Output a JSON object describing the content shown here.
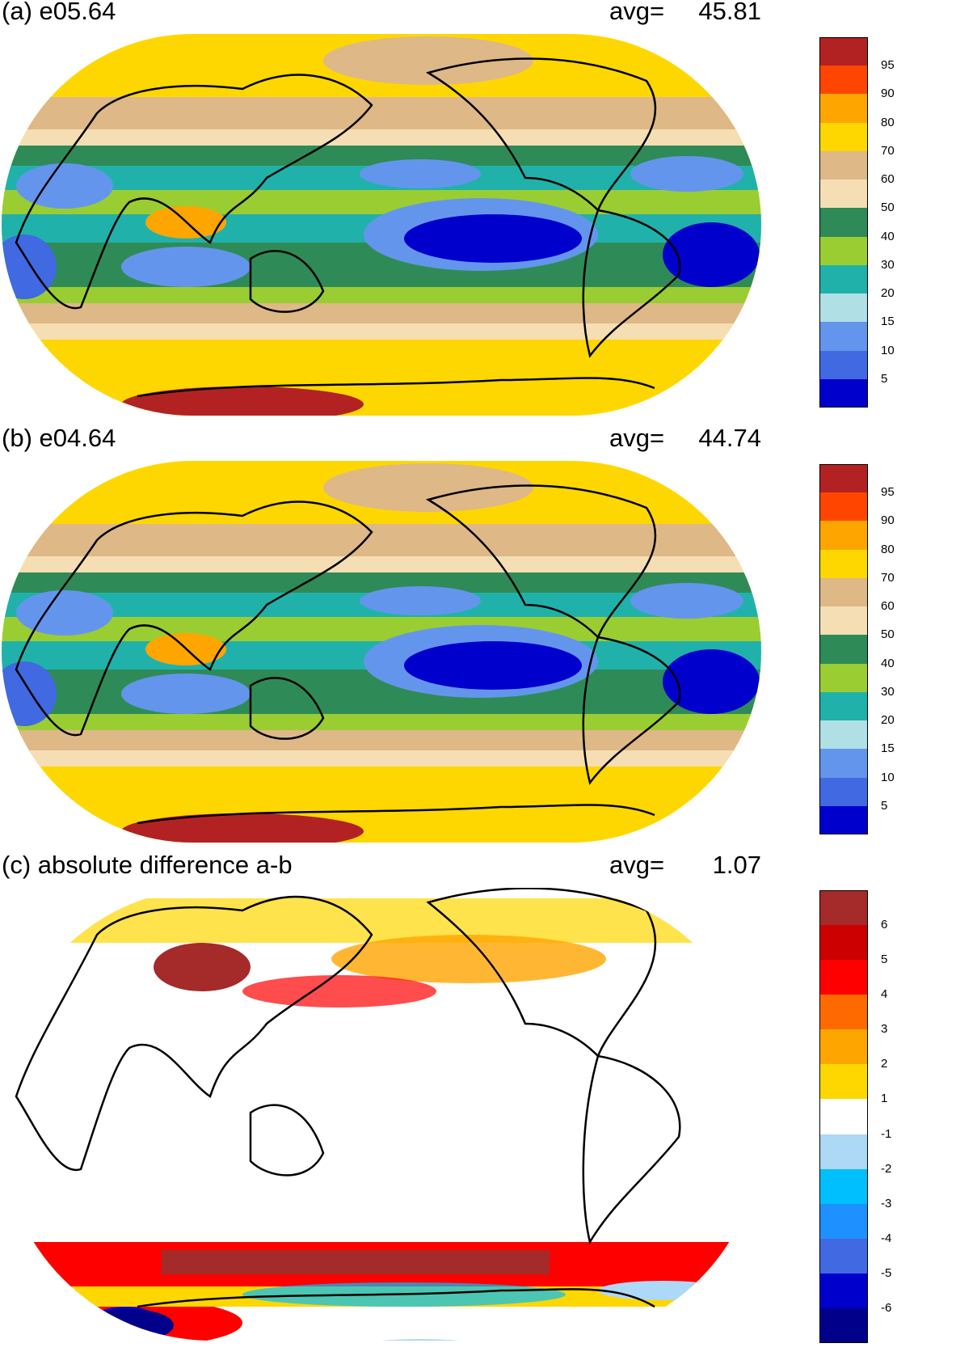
{
  "panels": [
    {
      "id": "a",
      "title": "(a) e05.64",
      "avg_label": "avg=",
      "avg_value": "45.81",
      "colorbar": {
        "labels": [
          "95",
          "90",
          "80",
          "70",
          "60",
          "50",
          "40",
          "30",
          "20",
          "15",
          "10",
          "5"
        ],
        "colors": [
          "#b22222",
          "#ff4500",
          "#ffa500",
          "#ffd700",
          "#deb887",
          "#f5deb3",
          "#2e8b57",
          "#9acd32",
          "#20b2aa",
          "#b0e0e6",
          "#6495ed",
          "#4169e1",
          "#0000cd"
        ]
      }
    },
    {
      "id": "b",
      "title": "(b) e04.64",
      "avg_label": "avg=",
      "avg_value": "44.74",
      "colorbar": {
        "labels": [
          "95",
          "90",
          "80",
          "70",
          "60",
          "50",
          "40",
          "30",
          "20",
          "15",
          "10",
          "5"
        ],
        "colors": [
          "#b22222",
          "#ff4500",
          "#ffa500",
          "#ffd700",
          "#deb887",
          "#f5deb3",
          "#2e8b57",
          "#9acd32",
          "#20b2aa",
          "#b0e0e6",
          "#6495ed",
          "#4169e1",
          "#0000cd"
        ]
      }
    },
    {
      "id": "c",
      "title": "(c) absolute difference a-b",
      "avg_label": "avg=",
      "avg_value": "1.07",
      "colorbar": {
        "labels": [
          "6",
          "5",
          "4",
          "3",
          "2",
          "1",
          "-1",
          "-2",
          "-3",
          "-4",
          "-5",
          "-6"
        ],
        "colors": [
          "#a52a2a",
          "#cd0000",
          "#ff0000",
          "#ff6a00",
          "#ffa500",
          "#ffd700",
          "#ffffff",
          "#add8f6",
          "#00bfff",
          "#1e90ff",
          "#4169e1",
          "#0000cd",
          "#00008b"
        ]
      }
    }
  ]
}
